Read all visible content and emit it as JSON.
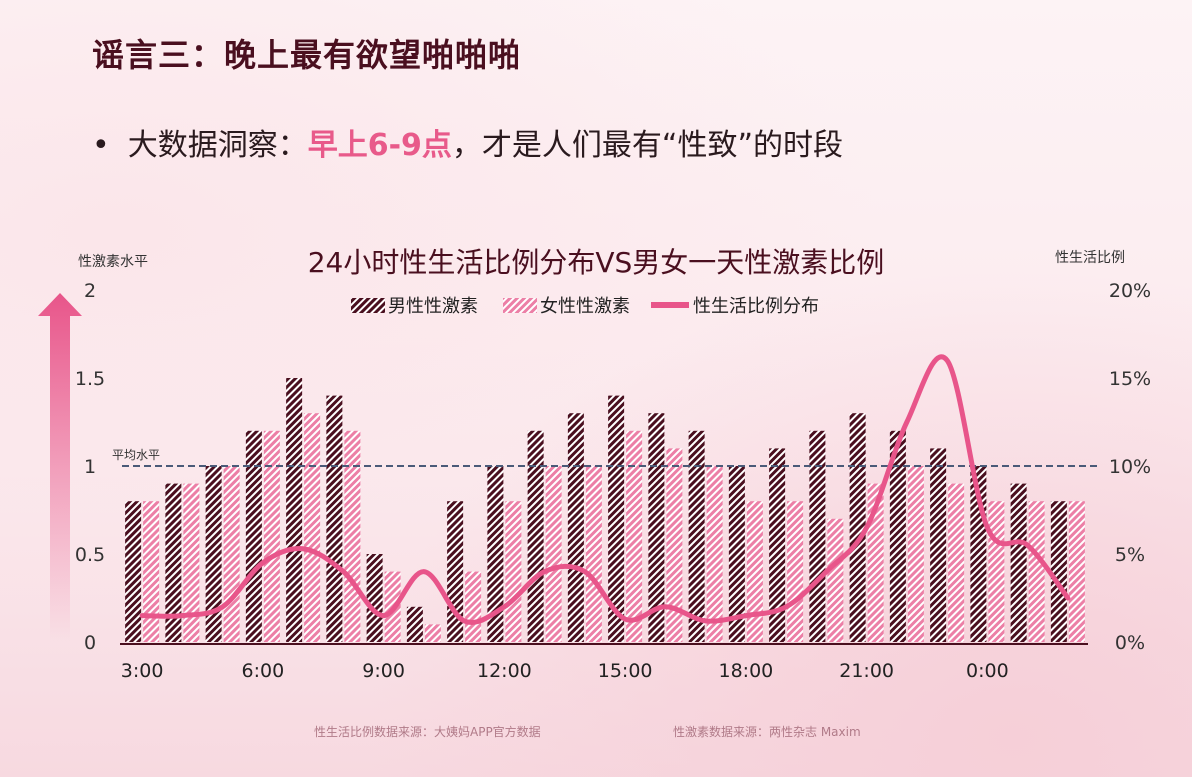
{
  "header": {
    "title": "谣言三：晚上最有欲望啪啪啪",
    "bullet_prefix": "大数据洞察：",
    "bullet_highlight": "早上6-9点",
    "bullet_suffix": "，才是人们最有“性致”的时段"
  },
  "chart_data": {
    "type": "bar",
    "title": "24小时性生活比例分布VS男女一天性激素比例",
    "left_axis_title": "性激素水平",
    "right_axis_title": "性生活比例",
    "y_left": {
      "ticks": [
        "0",
        "0.5",
        "1",
        "1.5",
        "2"
      ],
      "ylim": [
        0,
        2
      ]
    },
    "y_right": {
      "ticks": [
        "0%",
        "5%",
        "10%",
        "15%",
        "20%"
      ],
      "ylim": [
        0,
        20
      ]
    },
    "x_tick_labels": [
      "3:00",
      "6:00",
      "9:00",
      "12:00",
      "15:00",
      "18:00",
      "21:00",
      "0:00"
    ],
    "categories": [
      "3:00",
      "4:00",
      "5:00",
      "6:00",
      "7:00",
      "8:00",
      "9:00",
      "10:00",
      "11:00",
      "12:00",
      "13:00",
      "14:00",
      "15:00",
      "16:00",
      "17:00",
      "18:00",
      "19:00",
      "20:00",
      "21:00",
      "22:00",
      "23:00",
      "0:00",
      "1:00",
      "2:00"
    ],
    "series": [
      {
        "name": "男性性激素",
        "kind": "bar",
        "values": [
          0.8,
          0.9,
          1.0,
          1.2,
          1.5,
          1.4,
          0.5,
          0.2,
          0.8,
          1.0,
          1.2,
          1.3,
          1.4,
          1.3,
          1.2,
          1.0,
          1.1,
          1.2,
          1.3,
          1.2,
          1.1,
          1.0,
          0.9,
          0.8
        ]
      },
      {
        "name": "女性性激素",
        "kind": "bar",
        "values": [
          0.8,
          0.9,
          1.0,
          1.2,
          1.3,
          1.2,
          0.4,
          0.1,
          0.4,
          0.8,
          1.0,
          1.0,
          1.2,
          1.1,
          1.0,
          0.8,
          0.8,
          0.7,
          0.9,
          1.0,
          0.9,
          0.8,
          0.8,
          0.8
        ]
      },
      {
        "name": "性生活比例分布",
        "kind": "line",
        "unit": "%",
        "values": [
          1.5,
          1.5,
          2.0,
          4.5,
          5.3,
          4.0,
          1.5,
          4.0,
          1.2,
          2.0,
          4.0,
          4.0,
          1.3,
          2.0,
          1.2,
          1.5,
          2.0,
          4.0,
          6.5,
          12.5,
          16.0,
          6.5,
          5.5,
          2.5
        ]
      }
    ],
    "reference_line": {
      "label": "平均水平",
      "value": 1
    },
    "legend_position": "top-center",
    "colors": {
      "male": "#4a0f1f",
      "female": "#ec7fa6",
      "line": "#e8558a",
      "ref": "#4a5a78"
    }
  },
  "footer": {
    "source_left": "性生活比例数据来源：大姨妈APP官方数据",
    "source_right": "性激素数据来源：两性杂志  Maxim"
  }
}
